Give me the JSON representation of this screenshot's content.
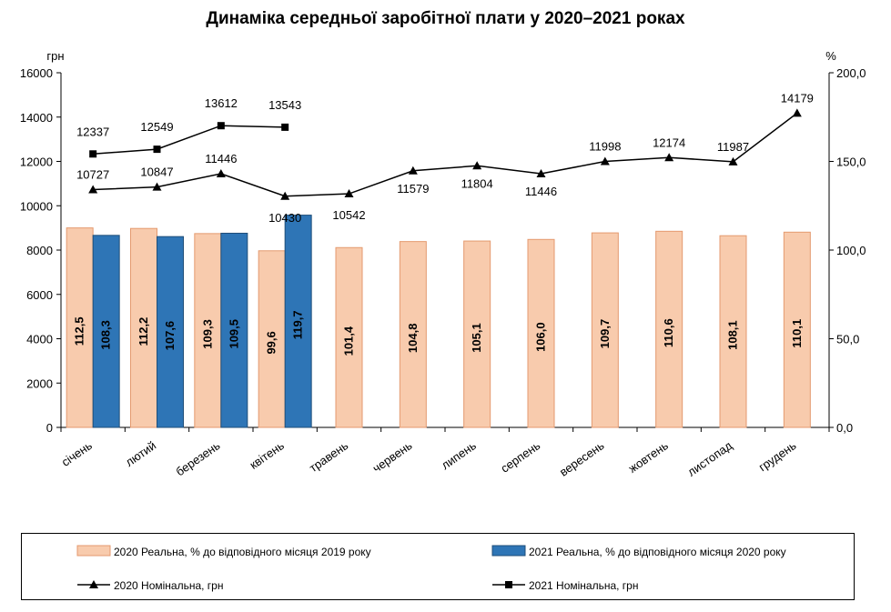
{
  "chart_data": {
    "type": "bar",
    "title": "Динаміка середньої заробітної плати у 2020–2021 роках",
    "left_axis_unit": "грн",
    "right_axis_unit": "%",
    "ylim": [
      0,
      16000
    ],
    "y_ticks": [
      "0",
      "2000",
      "4000",
      "6000",
      "8000",
      "10000",
      "12000",
      "14000",
      "16000"
    ],
    "y2lim": [
      0,
      200
    ],
    "y2_ticks": [
      "0,0",
      "50,0",
      "100,0",
      "150,0",
      "200,0"
    ],
    "categories": [
      "січень",
      "лютий",
      "березень",
      "квітень",
      "травень",
      "червень",
      "липень",
      "серпень",
      "вересень",
      "жовтень",
      "листопад",
      "грудень"
    ],
    "series": [
      {
        "name": "2020 Реальна, % до відповідного місяця 2019 року",
        "kind": "bar",
        "axis": "right",
        "color": "#f8cbad",
        "stroke": "#e49a6f",
        "values": [
          112.5,
          112.2,
          109.3,
          99.6,
          101.4,
          104.8,
          105.1,
          106.0,
          109.7,
          110.6,
          108.1,
          110.1
        ],
        "labels": [
          "112,5",
          "112,2",
          "109,3",
          "99,6",
          "101,4",
          "104,8",
          "105,1",
          "106,0",
          "109,7",
          "110,6",
          "108,1",
          "110,1"
        ]
      },
      {
        "name": "2021 Реальна, % до відповідного місяця 2020 року",
        "kind": "bar",
        "axis": "right",
        "color": "#2e75b6",
        "stroke": "#1f4e79",
        "values": [
          108.3,
          107.6,
          109.5,
          119.7,
          null,
          null,
          null,
          null,
          null,
          null,
          null,
          null
        ],
        "labels": [
          "108,3",
          "107,6",
          "109,5",
          "119,7",
          "",
          "",
          "",
          "",
          "",
          "",
          "",
          ""
        ]
      },
      {
        "name": "2020 Номінальна, грн",
        "kind": "line",
        "axis": "left",
        "marker": "triangle",
        "color": "#000000",
        "values": [
          10727,
          10847,
          11446,
          10430,
          10542,
          11579,
          11804,
          11446,
          11998,
          12174,
          11987,
          14179
        ],
        "labels": [
          "10727",
          "10847",
          "11446",
          "10430",
          "10542",
          "11579",
          "11804",
          "11446",
          "11998",
          "12174",
          "11987",
          "14179"
        ]
      },
      {
        "name": "2021 Номінальна, грн",
        "kind": "line",
        "axis": "left",
        "marker": "square",
        "color": "#000000",
        "values": [
          12337,
          12549,
          13612,
          13543,
          null,
          null,
          null,
          null,
          null,
          null,
          null,
          null
        ],
        "labels": [
          "12337",
          "12549",
          "13612",
          "13543",
          "",
          "",
          "",
          "",
          "",
          "",
          "",
          ""
        ]
      }
    ],
    "grid": false,
    "legend": "bottom"
  }
}
